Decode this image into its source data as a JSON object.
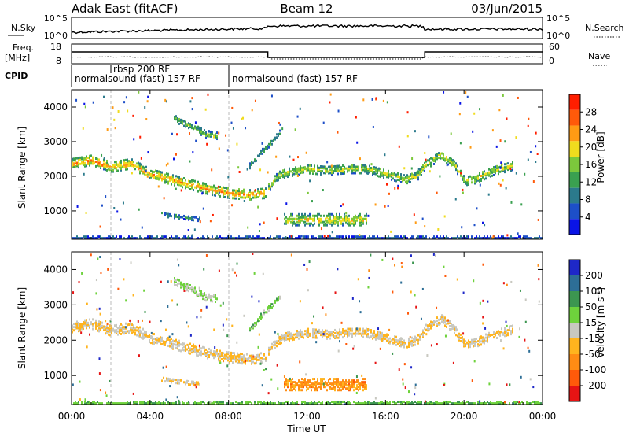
{
  "header": {
    "station": "Adak East (fitACF)",
    "beam": "Beam 12",
    "date": "03/Jun/2015"
  },
  "top_panel": {
    "left_label": "N.Sky",
    "right_label": "N.Search",
    "left_ticks": [
      "10^5",
      "10^0"
    ],
    "right_ticks": [
      "10^5",
      "10^0"
    ]
  },
  "freq_panel": {
    "left_label_1": "Freq.",
    "left_label_2": "[MHz]",
    "right_label": "Nave",
    "left_ticks": [
      "18",
      "8"
    ],
    "right_ticks": [
      "60",
      "0"
    ]
  },
  "cpid": {
    "label": "CPID",
    "segments": [
      {
        "text": "normalsound (fast) 157 RF"
      },
      {
        "text": "rbsp 200 RF"
      },
      {
        "text": "normalsound (fast) 157 RF"
      }
    ]
  },
  "chart_data": [
    {
      "type": "heatmap",
      "name": "power",
      "ylabel": "Slant Range [km]",
      "ylim": [
        180,
        4500
      ],
      "yticks": [
        "1000",
        "2000",
        "3000",
        "4000"
      ],
      "xlim": [
        0,
        24
      ],
      "colorbar": {
        "label": "Power [dB]",
        "ticks": [
          "4",
          "8",
          "12",
          "16",
          "20",
          "24",
          "28"
        ],
        "colors": [
          "#0a14e6",
          "#1d4fc8",
          "#2b7a8c",
          "#3aa050",
          "#7cc83c",
          "#f0dc1e",
          "#ff9b14",
          "#ff5a0a",
          "#ff1e00"
        ]
      },
      "bands": [
        {
          "points": [
            [
              0.0,
              2400
            ],
            [
              1.0,
              2500
            ],
            [
              2.0,
              2300
            ],
            [
              3.0,
              2400
            ],
            [
              4.0,
              2100
            ],
            [
              5.0,
              1950
            ],
            [
              6.0,
              1800
            ],
            [
              7.0,
              1650
            ],
            [
              8.0,
              1550
            ],
            [
              9.0,
              1500
            ],
            [
              9.9,
              1550
            ]
          ],
          "thickness": 280,
          "level": 0.55
        },
        {
          "points": [
            [
              10.0,
              1700
            ],
            [
              10.5,
              2050
            ],
            [
              11.0,
              2150
            ],
            [
              12.0,
              2250
            ],
            [
              13.0,
              2200
            ],
            [
              14.0,
              2250
            ],
            [
              15.0,
              2250
            ],
            [
              16.0,
              2100
            ],
            [
              17.0,
              1950
            ],
            [
              17.6,
              2050
            ],
            [
              18.0,
              2350
            ],
            [
              18.8,
              2650
            ],
            [
              19.5,
              2350
            ],
            [
              20.0,
              1900
            ],
            [
              20.5,
              1950
            ],
            [
              21.5,
              2200
            ],
            [
              22.5,
              2350
            ]
          ],
          "thickness": 250,
          "level": 0.4
        },
        {
          "points": [
            [
              10.8,
              780
            ],
            [
              12.0,
              780
            ],
            [
              13.0,
              780
            ],
            [
              14.0,
              780
            ],
            [
              15.0,
              780
            ]
          ],
          "thickness": 320,
          "level": 0.45
        },
        {
          "points": [
            [
              5.2,
              3700
            ],
            [
              6.0,
              3500
            ],
            [
              6.8,
              3250
            ],
            [
              7.4,
              3200
            ]
          ],
          "thickness": 180,
          "level": 0.3
        },
        {
          "points": [
            [
              4.5,
              950
            ],
            [
              5.0,
              900
            ],
            [
              5.8,
              850
            ],
            [
              6.5,
              800
            ]
          ],
          "thickness": 120,
          "level": 0.15
        },
        {
          "points": [
            [
              9.0,
              2300
            ],
            [
              9.6,
              2700
            ],
            [
              10.3,
              3100
            ],
            [
              10.6,
              3300
            ]
          ],
          "thickness": 140,
          "level": 0.25
        },
        {
          "points": [
            [
              0.0,
              250
            ],
            [
              6.0,
              250
            ],
            [
              12.0,
              250
            ],
            [
              18.0,
              250
            ],
            [
              24.0,
              250
            ]
          ],
          "thickness": 100,
          "level": 0.05
        }
      ]
    },
    {
      "type": "heatmap",
      "name": "velocity",
      "ylabel": "Slant Range [km]",
      "ylim": [
        180,
        4500
      ],
      "yticks": [
        "1000",
        "2000",
        "3000",
        "4000"
      ],
      "xlabel": "Time UT",
      "xticks": [
        "00:00",
        "04:00",
        "08:00",
        "12:00",
        "16:00",
        "20:00",
        "00:00"
      ],
      "xlim": [
        0,
        24
      ],
      "colorbar": {
        "label": "Velocity [m s",
        "label_sup": "-1",
        "ticks": [
          "200",
          "100",
          "50",
          "15",
          "-15",
          "-50",
          "-100",
          "-200"
        ],
        "colors": [
          "#1e28c8",
          "#2d6e96",
          "#3c9650",
          "#6ed23c",
          "#c8c8c0",
          "#ffb41e",
          "#ff8c14",
          "#ff5a0a",
          "#e61414"
        ]
      },
      "bands": [
        {
          "points": [
            [
              0.0,
              2400
            ],
            [
              1.0,
              2500
            ],
            [
              2.0,
              2300
            ],
            [
              3.0,
              2400
            ],
            [
              4.0,
              2100
            ],
            [
              5.0,
              1950
            ],
            [
              6.0,
              1800
            ],
            [
              7.0,
              1650
            ],
            [
              8.0,
              1550
            ],
            [
              9.0,
              1500
            ],
            [
              9.9,
              1550
            ]
          ],
          "thickness": 280,
          "level": 0.45
        },
        {
          "points": [
            [
              10.0,
              1700
            ],
            [
              10.5,
              2050
            ],
            [
              11.0,
              2150
            ],
            [
              12.0,
              2250
            ],
            [
              13.0,
              2200
            ],
            [
              14.0,
              2250
            ],
            [
              15.0,
              2250
            ],
            [
              16.0,
              2100
            ],
            [
              17.0,
              1950
            ],
            [
              17.6,
              2050
            ],
            [
              18.0,
              2350
            ],
            [
              18.8,
              2650
            ],
            [
              19.5,
              2350
            ],
            [
              20.0,
              1900
            ],
            [
              20.5,
              1950
            ],
            [
              21.5,
              2200
            ],
            [
              22.5,
              2350
            ]
          ],
          "thickness": 250,
          "level": 0.45
        },
        {
          "points": [
            [
              10.8,
              780
            ],
            [
              12.0,
              780
            ],
            [
              13.0,
              780
            ],
            [
              14.0,
              780
            ],
            [
              15.0,
              780
            ]
          ],
          "thickness": 320,
          "level": 0.3
        },
        {
          "points": [
            [
              5.2,
              3700
            ],
            [
              6.0,
              3500
            ],
            [
              6.8,
              3250
            ],
            [
              7.4,
              3200
            ]
          ],
          "thickness": 180,
          "level": 0.55
        },
        {
          "points": [
            [
              4.5,
              950
            ],
            [
              5.0,
              900
            ],
            [
              5.8,
              850
            ],
            [
              6.5,
              800
            ]
          ],
          "thickness": 120,
          "level": 0.45
        },
        {
          "points": [
            [
              9.0,
              2300
            ],
            [
              9.6,
              2700
            ],
            [
              10.3,
              3100
            ],
            [
              10.6,
              3300
            ]
          ],
          "thickness": 140,
          "level": 0.6
        },
        {
          "points": [
            [
              0.0,
              250
            ],
            [
              6.0,
              250
            ],
            [
              12.0,
              250
            ],
            [
              18.0,
              250
            ],
            [
              24.0,
              250
            ]
          ],
          "thickness": 100,
          "level": 0.65
        }
      ]
    }
  ]
}
